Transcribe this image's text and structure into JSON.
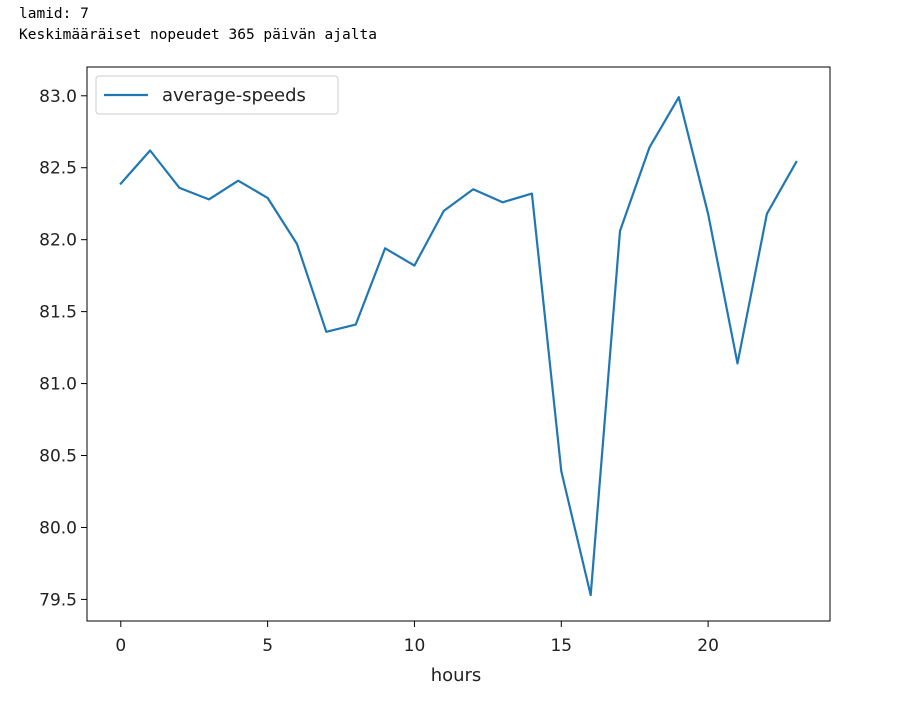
{
  "output": {
    "line1": "lamid: 7",
    "line2": "Keskimääräiset nopeudet 365 päivän ajalta"
  },
  "chart_data": {
    "type": "line",
    "xlabel": "hours",
    "ylabel": "",
    "xlim": [
      -1.15,
      24.15
    ],
    "ylim": [
      79.35,
      83.2
    ],
    "xticks": [
      "0",
      "5",
      "10",
      "15",
      "20"
    ],
    "yticks": [
      "79.5",
      "80.0",
      "80.5",
      "81.0",
      "81.5",
      "82.0",
      "82.5",
      "83.0"
    ],
    "grid": false,
    "legend": {
      "position": "top-left"
    },
    "series": [
      {
        "name": "average-speeds",
        "color": "#1f77b4",
        "x": [
          0,
          1,
          2,
          3,
          4,
          5,
          6,
          7,
          8,
          9,
          10,
          11,
          12,
          13,
          14,
          15,
          16,
          17,
          18,
          19,
          20,
          21,
          22,
          23
        ],
        "values": [
          82.39,
          82.62,
          82.36,
          82.28,
          82.41,
          82.29,
          81.97,
          81.36,
          81.41,
          81.94,
          81.82,
          82.2,
          82.35,
          82.26,
          82.32,
          80.39,
          79.53,
          82.06,
          82.64,
          82.99,
          82.18,
          81.14,
          82.18,
          82.54
        ]
      }
    ]
  }
}
